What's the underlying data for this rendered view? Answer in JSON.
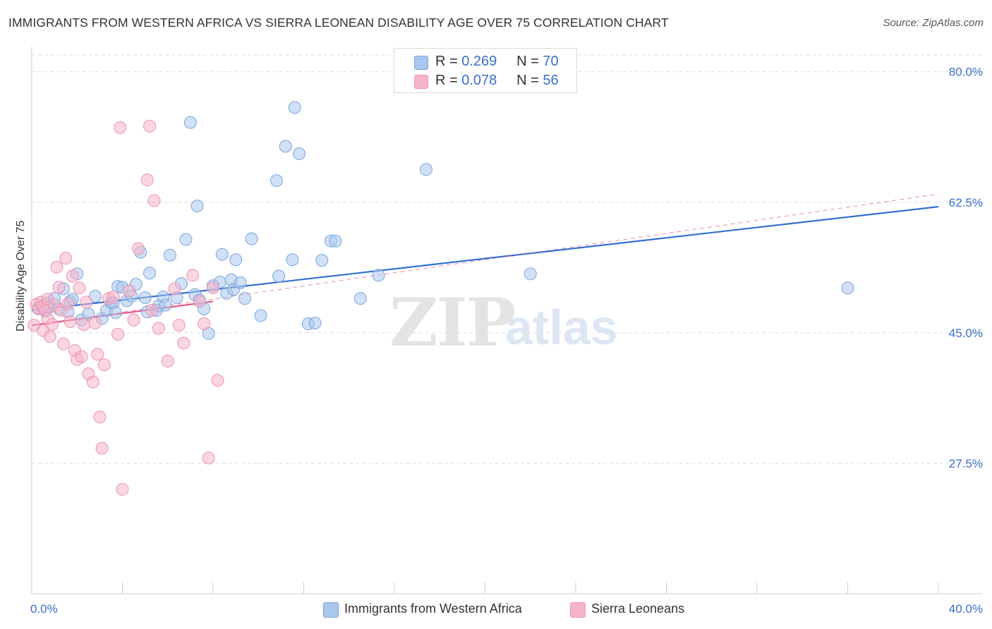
{
  "title": "IMMIGRANTS FROM WESTERN AFRICA VS SIERRA LEONEAN DISABILITY AGE OVER 75 CORRELATION CHART",
  "source": "Source: ZipAtlas.com",
  "legend": {
    "series1": {
      "r_label": "R = ",
      "r_value": "0.269",
      "n_label": "N = ",
      "n_value": "70"
    },
    "series2": {
      "r_label": "R = ",
      "r_value": "0.078",
      "n_label": "N = ",
      "n_value": "56"
    }
  },
  "watermark": {
    "zip": "ZIP",
    "atlas": "atlas"
  },
  "colors": {
    "blue_fill": "#a9c6ec",
    "blue_stroke": "#7aa5de",
    "blue_line": "#3370d0",
    "pink_fill": "#f5b5c8",
    "pink_stroke": "#ee93ae",
    "pink_line": "#e8558a",
    "tick_label": "#3b6fc9",
    "grid": "#dddddd"
  },
  "chart_data": {
    "type": "scatter",
    "title": "IMMIGRANTS FROM WESTERN AFRICA VS SIERRA LEONEAN DISABILITY AGE OVER 75 CORRELATION CHART",
    "xlabel": "",
    "ylabel": "Disability Age Over 75",
    "xlim": [
      0,
      40
    ],
    "ylim": [
      10,
      83
    ],
    "x_tick_labels": [
      "0.0%",
      "40.0%"
    ],
    "y_ticks": [
      27.5,
      45.0,
      62.5,
      80.0
    ],
    "y_tick_labels": [
      "27.5%",
      "45.0%",
      "62.5%",
      "80.0%"
    ],
    "grid": true,
    "legend_position": "top-center",
    "series": [
      {
        "name": "Immigrants from Western Africa",
        "color": "blue",
        "trend": {
          "x0": 0,
          "y0": 48.0,
          "x1": 40,
          "y1": 61.9
        },
        "points": [
          [
            0.3,
            48.3
          ],
          [
            0.4,
            48.6
          ],
          [
            0.5,
            48.2
          ],
          [
            0.6,
            47.9
          ],
          [
            0.7,
            49.0
          ],
          [
            0.8,
            48.5
          ],
          [
            1.0,
            49.6
          ],
          [
            1.2,
            48.2
          ],
          [
            1.4,
            50.9
          ],
          [
            1.6,
            47.8
          ],
          [
            1.7,
            49.2
          ],
          [
            1.8,
            49.5
          ],
          [
            2.0,
            52.9
          ],
          [
            2.2,
            46.7
          ],
          [
            2.5,
            47.5
          ],
          [
            2.8,
            49.9
          ],
          [
            3.1,
            46.9
          ],
          [
            3.3,
            48.0
          ],
          [
            3.5,
            49.0
          ],
          [
            3.6,
            49.0
          ],
          [
            3.7,
            47.7
          ],
          [
            3.8,
            51.2
          ],
          [
            4.0,
            51.1
          ],
          [
            4.2,
            49.3
          ],
          [
            4.4,
            49.9
          ],
          [
            4.6,
            51.5
          ],
          [
            4.8,
            55.8
          ],
          [
            5.0,
            49.7
          ],
          [
            5.1,
            47.8
          ],
          [
            5.2,
            53.0
          ],
          [
            5.5,
            48.0
          ],
          [
            5.6,
            48.6
          ],
          [
            5.8,
            49.8
          ],
          [
            5.9,
            48.7
          ],
          [
            6.1,
            55.4
          ],
          [
            6.4,
            49.7
          ],
          [
            6.6,
            51.6
          ],
          [
            6.8,
            57.5
          ],
          [
            7.0,
            73.2
          ],
          [
            7.2,
            50.1
          ],
          [
            7.3,
            62.0
          ],
          [
            7.4,
            49.4
          ],
          [
            7.6,
            48.2
          ],
          [
            7.8,
            44.9
          ],
          [
            8.0,
            51.3
          ],
          [
            8.3,
            51.8
          ],
          [
            8.4,
            55.5
          ],
          [
            8.6,
            50.3
          ],
          [
            8.8,
            52.1
          ],
          [
            8.9,
            50.8
          ],
          [
            9.0,
            54.8
          ],
          [
            9.2,
            51.7
          ],
          [
            9.4,
            49.6
          ],
          [
            9.7,
            57.6
          ],
          [
            10.1,
            47.3
          ],
          [
            10.8,
            65.4
          ],
          [
            10.9,
            52.6
          ],
          [
            11.2,
            70.0
          ],
          [
            11.5,
            54.8
          ],
          [
            11.6,
            75.2
          ],
          [
            11.8,
            69.0
          ],
          [
            12.2,
            46.2
          ],
          [
            12.5,
            46.3
          ],
          [
            12.8,
            54.7
          ],
          [
            13.2,
            57.3
          ],
          [
            13.4,
            57.3
          ],
          [
            14.5,
            49.6
          ],
          [
            15.3,
            52.7
          ],
          [
            17.4,
            66.9
          ],
          [
            22.0,
            52.9
          ],
          [
            36.0,
            51.0
          ]
        ]
      },
      {
        "name": "Sierra Leoneans",
        "color": "pink",
        "trend": {
          "x0": 0,
          "y0": 46.0,
          "x1": 8,
          "y1": 49.2
        },
        "trend_extension": {
          "x0": 0,
          "y0": 46.0,
          "x1": 40,
          "y1": 63.6
        },
        "points": [
          [
            0.1,
            46.0
          ],
          [
            0.2,
            48.8
          ],
          [
            0.3,
            48.2
          ],
          [
            0.4,
            49.1
          ],
          [
            0.5,
            48.5
          ],
          [
            0.5,
            45.3
          ],
          [
            0.6,
            48.0
          ],
          [
            0.7,
            46.9
          ],
          [
            0.7,
            49.5
          ],
          [
            0.8,
            44.5
          ],
          [
            0.9,
            46.1
          ],
          [
            1.0,
            48.7
          ],
          [
            1.1,
            53.8
          ],
          [
            1.2,
            51.1
          ],
          [
            1.3,
            48.0
          ],
          [
            1.4,
            43.5
          ],
          [
            1.5,
            55.0
          ],
          [
            1.6,
            48.9
          ],
          [
            1.7,
            46.5
          ],
          [
            1.8,
            52.6
          ],
          [
            1.9,
            42.6
          ],
          [
            2.0,
            41.4
          ],
          [
            2.1,
            51.0
          ],
          [
            2.2,
            41.8
          ],
          [
            2.3,
            46.1
          ],
          [
            2.4,
            49.1
          ],
          [
            2.5,
            39.5
          ],
          [
            2.7,
            38.4
          ],
          [
            2.8,
            46.3
          ],
          [
            2.9,
            42.1
          ],
          [
            3.0,
            33.7
          ],
          [
            3.1,
            29.5
          ],
          [
            3.2,
            40.7
          ],
          [
            3.4,
            49.6
          ],
          [
            3.6,
            49.8
          ],
          [
            3.8,
            44.8
          ],
          [
            3.9,
            72.5
          ],
          [
            4.0,
            24.0
          ],
          [
            4.3,
            50.6
          ],
          [
            4.5,
            46.7
          ],
          [
            4.7,
            56.3
          ],
          [
            5.1,
            65.5
          ],
          [
            5.2,
            72.7
          ],
          [
            5.3,
            48.0
          ],
          [
            5.4,
            62.7
          ],
          [
            5.6,
            45.6
          ],
          [
            6.0,
            41.2
          ],
          [
            6.3,
            50.9
          ],
          [
            6.5,
            46.0
          ],
          [
            6.7,
            43.6
          ],
          [
            7.1,
            52.7
          ],
          [
            7.4,
            49.2
          ],
          [
            7.6,
            46.2
          ],
          [
            7.8,
            28.2
          ],
          [
            8.0,
            51.0
          ],
          [
            8.2,
            38.6
          ]
        ]
      }
    ]
  },
  "bottom_legend": [
    "Immigrants from Western Africa",
    "Sierra Leoneans"
  ],
  "axis": {
    "ylabel": "Disability Age Over 75",
    "x_min_label": "0.0%",
    "x_max_label": "40.0%"
  }
}
